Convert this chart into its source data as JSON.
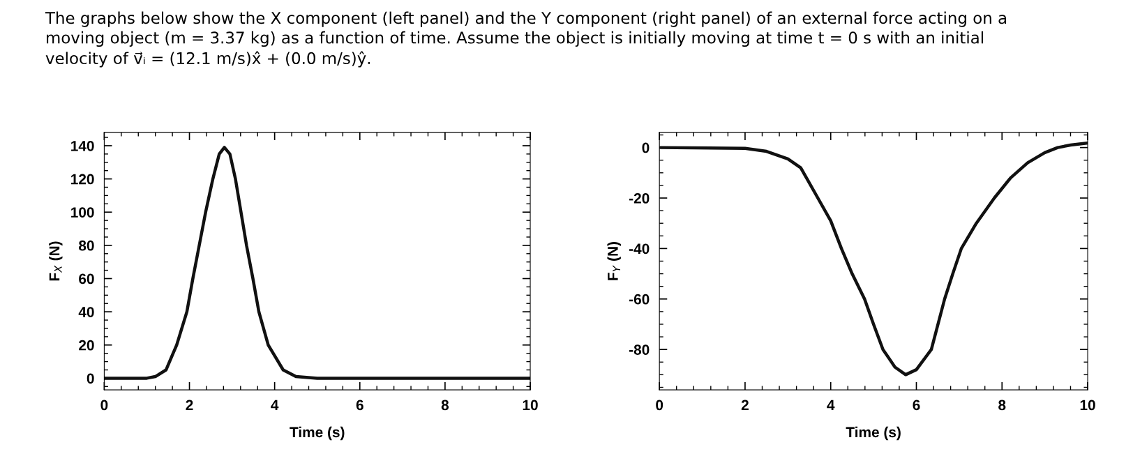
{
  "chart_data": [
    {
      "type": "line",
      "title": "The graphs below show the X component (left panel) and the Y component (right panel) of an external force acting on a\nmoving object (m = 3.37 kg) as a function of time. Assume the object is initially moving at time t = 0 s with an initial\nvelocity of v⃗ᵢ = (12.1 m/s)x̂ + (0.0 m/s)ŷ.",
      "xlabel": "Time (s)",
      "ylabel": "F$_{X}$ (N)",
      "xlim": [
        0,
        10
      ],
      "xticks": [
        0,
        2,
        4,
        6,
        8,
        10
      ],
      "ylim": [
        -7,
        148
      ],
      "yticks": [
        0,
        20,
        40,
        60,
        80,
        100,
        120,
        140
      ],
      "grid": false,
      "marker": "none",
      "line_style": "solid",
      "series": [
        {
          "color": "#111111",
          "x": [
            0,
            1.0,
            1.2,
            1.45,
            1.7,
            1.94,
            2.08,
            2.23,
            2.38,
            2.55,
            2.7,
            2.82,
            2.95,
            3.08,
            3.21,
            3.34,
            3.49,
            3.63,
            3.85,
            4.2,
            4.5,
            5,
            10
          ],
          "values": [
            0,
            0,
            1,
            5,
            20,
            40,
            60,
            80,
            100,
            120,
            135,
            139,
            135,
            120,
            100,
            80,
            60,
            40,
            20,
            5,
            1,
            0,
            0
          ]
        }
      ]
    },
    {
      "type": "line",
      "xlabel": "Time (s)",
      "ylabel": "F$_{Y}$ (N)",
      "xlim": [
        0,
        10
      ],
      "xticks": [
        0,
        2,
        4,
        6,
        8,
        10
      ],
      "ylim": [
        -96,
        6
      ],
      "yticks": [
        -80,
        -60,
        -40,
        -20,
        0
      ],
      "grid": false,
      "marker": "none",
      "line_style": "solid",
      "series": [
        {
          "color": "#111111",
          "x": [
            0,
            2,
            2.5,
            3,
            3.3,
            3.7,
            4.0,
            4.25,
            4.5,
            4.79,
            5.0,
            5.22,
            5.5,
            5.75,
            6.0,
            6.35,
            6.66,
            6.85,
            7.05,
            7.4,
            7.82,
            8.2,
            8.6,
            9.0,
            9.3,
            9.6,
            10
          ],
          "values": [
            0,
            -0.3,
            -1.5,
            -4.5,
            -8,
            -20,
            -29,
            -40,
            -50,
            -60,
            -70,
            -80,
            -87,
            -90,
            -88,
            -80,
            -60,
            -50,
            -40,
            -30,
            -20,
            -12,
            -6,
            -2,
            0,
            1,
            1.8
          ]
        }
      ]
    }
  ]
}
